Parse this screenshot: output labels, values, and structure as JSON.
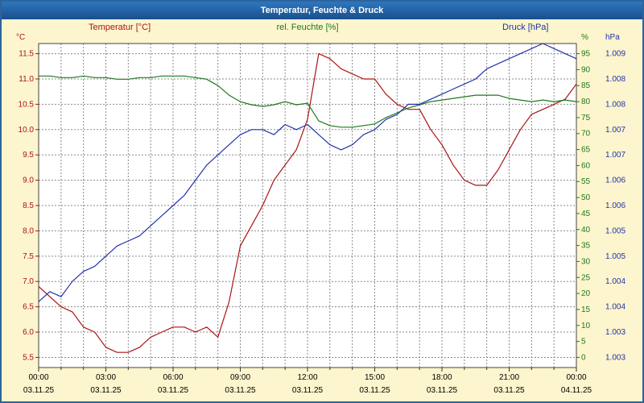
{
  "window": {
    "title": "Temperatur, Feuchte & Druck"
  },
  "chart_data": {
    "type": "line",
    "title": "Temperatur, Feuchte & Druck",
    "grid": true,
    "legend_position": "top",
    "x_hours": [
      0,
      0.5,
      1,
      1.5,
      2,
      2.5,
      3,
      3.5,
      4,
      4.5,
      5,
      5.5,
      6,
      6.5,
      7,
      7.5,
      8,
      8.5,
      9,
      9.5,
      10,
      10.5,
      11,
      11.5,
      12,
      12.5,
      13,
      13.5,
      14,
      14.5,
      15,
      15.5,
      16,
      16.5,
      17,
      17.5,
      18,
      18.5,
      19,
      19.5,
      20,
      20.5,
      21,
      21.5,
      22,
      22.5,
      23,
      23.5,
      24
    ],
    "x_axis": {
      "hours": [
        0,
        3,
        6,
        9,
        12,
        15,
        18,
        21,
        24
      ],
      "times": [
        "00:00",
        "03:00",
        "06:00",
        "09:00",
        "12:00",
        "15:00",
        "18:00",
        "21:00",
        "00:00"
      ],
      "dates": [
        "03.11.25",
        "03.11.25",
        "03.11.25",
        "03.11.25",
        "03.11.25",
        "03.11.25",
        "03.11.25",
        "03.11.25",
        "04.11.25"
      ]
    },
    "axes": {
      "temperature": {
        "unit": "°C",
        "color": "#aa1414",
        "min": 5.3,
        "max": 11.7,
        "tick_values": [
          11.5,
          11.0,
          10.5,
          10.0,
          9.5,
          9.0,
          8.5,
          8.0,
          7.5,
          7.0,
          6.5,
          6.0,
          5.5
        ],
        "tick_labels": [
          "11.5",
          "11.0",
          "10.5",
          "10.0",
          "9.5",
          "9.0",
          "8.5",
          "8.0",
          "7.5",
          "7.0",
          "6.5",
          "6.0",
          "5.5"
        ]
      },
      "humidity": {
        "unit": "%",
        "color": "#1d7a1d",
        "min": -3.17,
        "max": 98.17,
        "tick_values": [
          95,
          90,
          85,
          80,
          75,
          70,
          65,
          60,
          55,
          50,
          45,
          40,
          35,
          30,
          25,
          20,
          15,
          10,
          5,
          0
        ],
        "tick_labels": [
          "95",
          "90",
          "85",
          "80",
          "75",
          "70",
          "65",
          "60",
          "55",
          "50",
          "45",
          "40",
          "35",
          "30",
          "25",
          "20",
          "15",
          "10",
          "5",
          "0"
        ]
      },
      "pressure": {
        "unit": "hPa",
        "color": "#2233aa",
        "min": 1002.8,
        "max": 1009.2,
        "tick_labels": [
          "1.009",
          "1.008",
          "1.008",
          "1.007",
          "1.007",
          "1.006",
          "1.006",
          "1.005",
          "1.005",
          "1.004",
          "1.004",
          "1.003",
          "1.003"
        ]
      }
    },
    "series": [
      {
        "name": "Temperatur [°C]",
        "axis": "temperature",
        "color": "#aa1414",
        "values": [
          6.9,
          6.7,
          6.5,
          6.4,
          6.1,
          6.0,
          5.7,
          5.6,
          5.6,
          5.7,
          5.9,
          6.0,
          6.1,
          6.1,
          6.0,
          6.1,
          5.9,
          6.6,
          7.7,
          8.1,
          8.5,
          9.0,
          9.3,
          9.6,
          10.2,
          11.5,
          11.4,
          11.2,
          11.1,
          11.0,
          11.0,
          10.7,
          10.5,
          10.4,
          10.4,
          10.0,
          9.7,
          9.3,
          9.0,
          8.9,
          8.9,
          9.2,
          9.6,
          10.0,
          10.3,
          10.4,
          10.5,
          10.6,
          10.9
        ]
      },
      {
        "name": "rel. Feuchte [%]",
        "axis": "humidity",
        "color": "#1d7a1d",
        "values": [
          88,
          88,
          87.5,
          87.5,
          88,
          87.5,
          87.5,
          87,
          87,
          87.5,
          87.5,
          88,
          88,
          88,
          87.5,
          87,
          85,
          82,
          80,
          79,
          78.5,
          79,
          80,
          79,
          79.5,
          74,
          72.5,
          72,
          72,
          72.5,
          73,
          75,
          76.5,
          78,
          79,
          80,
          80.5,
          81,
          81.5,
          82,
          82,
          82,
          81,
          80.5,
          80,
          80.5,
          80,
          80.5,
          80
        ]
      },
      {
        "name": "Druck [hPa]",
        "axis": "pressure",
        "color": "#2233aa",
        "values": [
          1004.1,
          1004.3,
          1004.2,
          1004.5,
          1004.7,
          1004.8,
          1005.0,
          1005.2,
          1005.3,
          1005.4,
          1005.6,
          1005.8,
          1006.0,
          1006.2,
          1006.5,
          1006.8,
          1007.0,
          1007.2,
          1007.4,
          1007.5,
          1007.5,
          1007.4,
          1007.6,
          1007.5,
          1007.6,
          1007.4,
          1007.2,
          1007.1,
          1007.2,
          1007.4,
          1007.5,
          1007.7,
          1007.8,
          1008.0,
          1008.0,
          1008.1,
          1008.2,
          1008.3,
          1008.4,
          1008.5,
          1008.7,
          1008.8,
          1008.9,
          1009.0,
          1009.1,
          1009.2,
          1009.1,
          1009.0,
          1008.9
        ]
      }
    ]
  },
  "colors": {
    "background": "#fdf5cd",
    "border": "#2e639c",
    "titlebar_top": "#2f77bd",
    "titlebar_bottom": "#1a4f8c",
    "plot_background": "#ffffff",
    "gridline": "#8a8a8a",
    "axis_text": "#000000"
  }
}
